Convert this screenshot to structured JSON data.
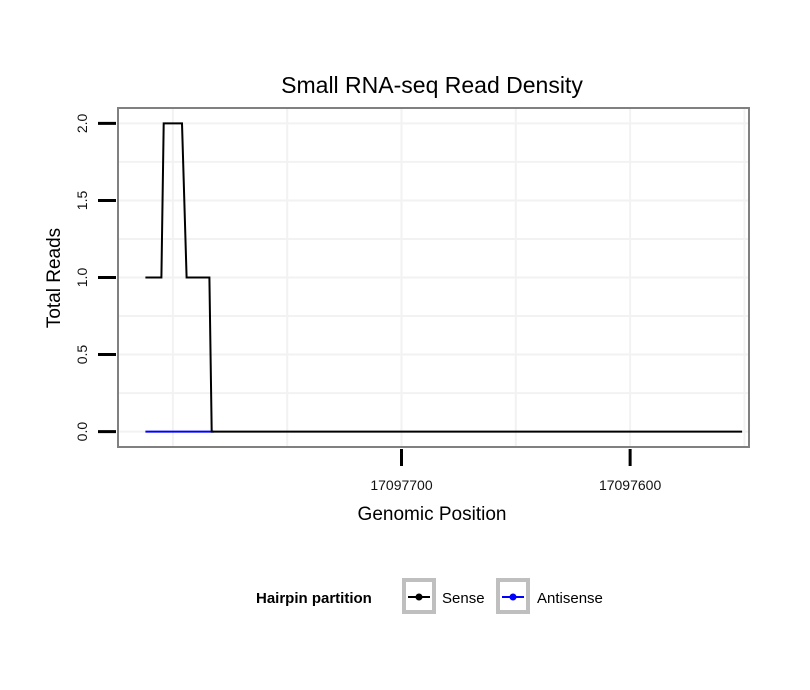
{
  "chart_data": {
    "type": "line",
    "title": "Small RNA-seq Read Density",
    "xlabel": "Genomic Position",
    "ylabel": "Total Reads",
    "xlim": [
      17097824,
      17097548
    ],
    "ylim": [
      -0.1,
      2.1
    ],
    "xticks": [
      17097700,
      17097600
    ],
    "yticks": [
      0.0,
      0.5,
      1.0,
      1.5,
      2.0
    ],
    "xtick_labels": [
      "17097700",
      "17097600"
    ],
    "ytick_labels": [
      "0.0",
      "0.5",
      "1.0",
      "1.5",
      "2.0"
    ],
    "grid": true,
    "legend_position": "bottom",
    "legend_title": "Hairpin partition",
    "series": [
      {
        "name": "Sense",
        "color": "#000000",
        "x": [
          17097812,
          17097805,
          17097804,
          17097796,
          17097794,
          17097784,
          17097783,
          17097551
        ],
        "y": [
          1,
          1,
          2,
          2,
          1,
          1,
          0,
          0
        ]
      },
      {
        "name": "Antisense",
        "color": "#0000ff",
        "x": [
          17097812,
          17097782
        ],
        "y": [
          0,
          0
        ]
      }
    ]
  }
}
